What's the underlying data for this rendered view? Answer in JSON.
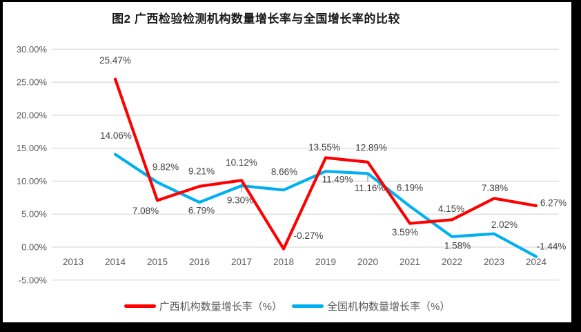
{
  "title": "图2 广西检验检测机构数量增长率与全国增长率的比较",
  "chart_data": {
    "type": "line",
    "categories": [
      "2013",
      "2014",
      "2015",
      "2016",
      "2017",
      "2018",
      "2019",
      "2020",
      "2021",
      "2022",
      "2023",
      "2024"
    ],
    "x_start": 2013,
    "ylim": [
      -5,
      30
    ],
    "ytick_step": 5,
    "ytick_labels": [
      "30.00%",
      "25.00%",
      "20.00%",
      "15.00%",
      "10.00%",
      "5.00%",
      "0.00%",
      "-5.00%"
    ],
    "grid": true,
    "legend_position": "bottom",
    "series": [
      {
        "name": "广西机构数量增长率（%）",
        "color": "#ff0000",
        "years": [
          2014,
          2015,
          2016,
          2017,
          2018,
          2019,
          2020,
          2021,
          2022,
          2023,
          2024
        ],
        "values": [
          25.47,
          7.08,
          9.21,
          10.12,
          -0.27,
          13.55,
          12.89,
          3.59,
          4.15,
          7.38,
          6.27
        ],
        "labels": [
          "25.47%",
          "7.08%",
          "9.21%",
          "10.12%",
          "-0.27%",
          "13.55%",
          "12.89%",
          "3.59%",
          "4.15%",
          "7.38%",
          "6.27%"
        ]
      },
      {
        "name": "全国机构数量增长率（%）",
        "color": "#00b0f0",
        "years": [
          2014,
          2015,
          2016,
          2017,
          2018,
          2019,
          2020,
          2021,
          2022,
          2023,
          2024
        ],
        "values": [
          14.06,
          9.82,
          6.79,
          9.3,
          8.66,
          11.49,
          11.16,
          6.19,
          1.58,
          2.02,
          -1.44
        ],
        "labels": [
          "14.06%",
          "9.82%",
          "6.79%",
          "9.30%",
          "8.66%",
          "11.49%",
          "11.16%",
          "6.19%",
          "1.58%",
          "2.02%",
          "-1.44%"
        ]
      }
    ],
    "colors": {
      "grid": "#d9d9d9",
      "axis_text": "#595959",
      "data_label": "#404040",
      "leader": "#a6a6a6",
      "frame": "#000000",
      "background": "#ffffff"
    }
  }
}
